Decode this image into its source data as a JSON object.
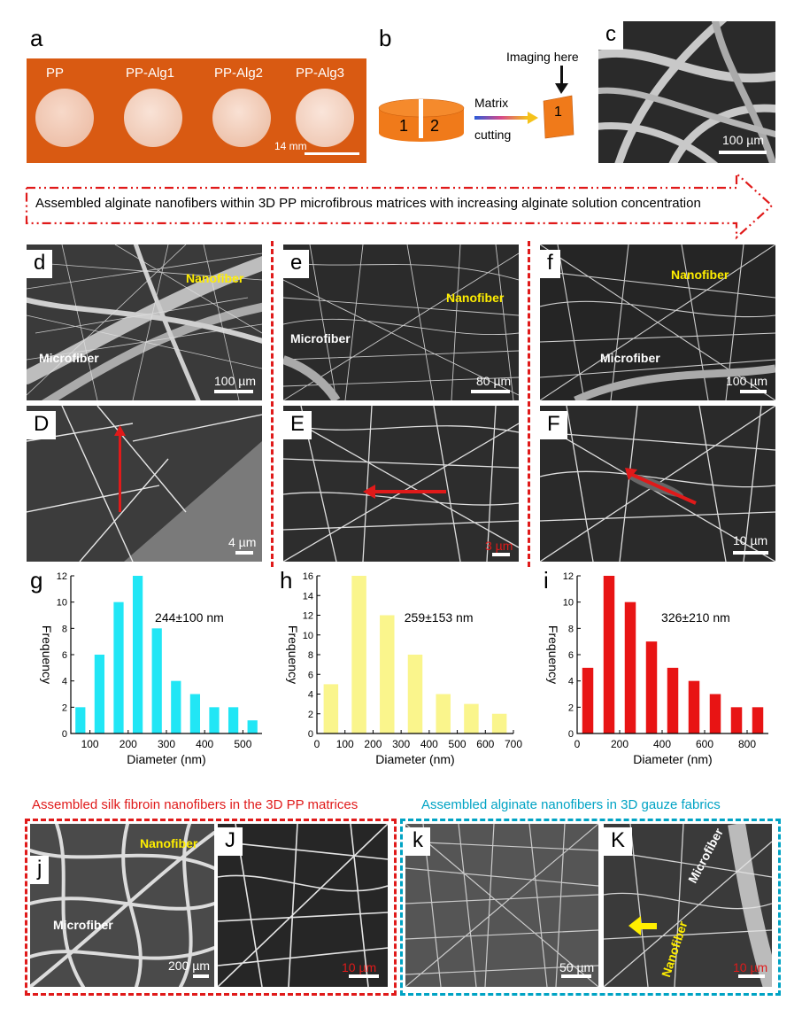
{
  "panel_labels": {
    "a": "a",
    "b": "b",
    "c": "c",
    "d": "d",
    "e": "e",
    "f": "f",
    "D": "D",
    "E": "E",
    "F": "F",
    "g": "g",
    "h": "h",
    "i": "i",
    "j": "j",
    "J": "J",
    "k": "k",
    "K": "K"
  },
  "panel_a": {
    "samples": [
      "PP",
      "PP-Alg1",
      "PP-Alg2",
      "PP-Alg3"
    ],
    "scale": "14 mm",
    "background_color": "#d95a12"
  },
  "panel_b": {
    "disc_left": "1",
    "disc_right": "2",
    "arrow_top": "Matrix",
    "arrow_bottom": "cutting",
    "piece_label": "1",
    "imaging_label": "Imaging here",
    "orange": "#f07a1a"
  },
  "panel_c": {
    "scale": "100 µm"
  },
  "banner": {
    "text": "Assembled alginate nanofibers within 3D PP microfibrous matrices with increasing alginate solution concentration",
    "color": "#e01a1a"
  },
  "sem_top": {
    "d": {
      "nanofiber": "Nanofiber",
      "microfiber": "Microfiber",
      "scale": "100 µm"
    },
    "e": {
      "nanofiber": "Nanofiber",
      "microfiber": "Microfiber",
      "scale": "80 µm"
    },
    "f": {
      "nanofiber": "Nanofiber",
      "microfiber": "Microfiber",
      "scale": "100 µm"
    }
  },
  "sem_mid": {
    "D": {
      "scale": "4 µm"
    },
    "E": {
      "scale": "3 µm"
    },
    "F": {
      "scale": "10 µm"
    }
  },
  "chart_data": [
    {
      "type": "bar",
      "panel": "g",
      "color": "#21e6f5",
      "x": [
        75,
        125,
        175,
        225,
        275,
        325,
        375,
        425,
        475,
        525
      ],
      "values": [
        2,
        6,
        10,
        12,
        8,
        4,
        3,
        2,
        2,
        1
      ],
      "xlim": [
        50,
        550
      ],
      "ylim": [
        0,
        12
      ],
      "xticks": [
        100,
        200,
        300,
        400,
        500
      ],
      "yticks": [
        0,
        2,
        4,
        6,
        8,
        10,
        12
      ],
      "xlabel": "Diameter  (nm)",
      "ylabel": "Frequency",
      "annotation": "244±100 nm"
    },
    {
      "type": "bar",
      "panel": "h",
      "color": "#faf58c",
      "x": [
        50,
        150,
        250,
        350,
        450,
        550,
        650
      ],
      "values": [
        5,
        16,
        12,
        8,
        4,
        3,
        2
      ],
      "xlim": [
        0,
        700
      ],
      "ylim": [
        0,
        16
      ],
      "xticks": [
        0,
        100,
        200,
        300,
        400,
        500,
        600,
        700
      ],
      "yticks": [
        0,
        2,
        4,
        6,
        8,
        10,
        12,
        14,
        16
      ],
      "xlabel": "Diameter  (nm)",
      "ylabel": "Frequency",
      "annotation": "259±153 nm"
    },
    {
      "type": "bar",
      "panel": "i",
      "color": "#e81414",
      "x": [
        50,
        150,
        250,
        350,
        450,
        550,
        650,
        750,
        850
      ],
      "values": [
        5,
        12,
        10,
        7,
        5,
        4,
        3,
        2,
        2
      ],
      "xlim": [
        0,
        900
      ],
      "ylim": [
        0,
        12
      ],
      "xticks": [
        0,
        200,
        400,
        600,
        800
      ],
      "yticks": [
        0,
        2,
        4,
        6,
        8,
        10,
        12
      ],
      "xlabel": "Diameter  (nm)",
      "ylabel": "Frequency",
      "annotation": "326±210 nm"
    }
  ],
  "bottom": {
    "caption_left": "Assembled silk fibroin nanofibers  in the 3D PP matrices",
    "caption_right": "Assembled alginate nanofibers in 3D gauze fabrics",
    "j": {
      "nanofiber": "Nanofiber",
      "microfiber": "Microfiber",
      "scale": "200 µm"
    },
    "J": {
      "scale": "10 µm"
    },
    "k": {
      "scale": "50 µm"
    },
    "K": {
      "nanofiber": "Nanofiber",
      "microfiber": "Microfiber",
      "scale": "10 µm"
    },
    "red": "#e01a1a",
    "blue": "#00a3c4"
  }
}
